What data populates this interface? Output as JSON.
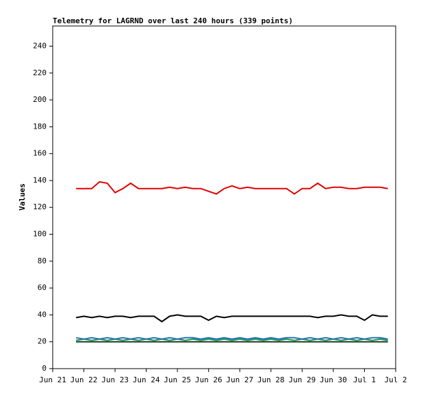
{
  "chart_data": {
    "type": "line",
    "title": "Telemetry for LAGRND over last 240 hours (339 points)",
    "y_label": "Values",
    "xlim": [
      0,
      11
    ],
    "xticks": [
      {
        "value": 0,
        "label": "Jun 21"
      },
      {
        "value": 1,
        "label": "Jun 22"
      },
      {
        "value": 2,
        "label": "Jun 23"
      },
      {
        "value": 3,
        "label": "Jun 24"
      },
      {
        "value": 4,
        "label": "Jun 25"
      },
      {
        "value": 5,
        "label": "Jun 26"
      },
      {
        "value": 6,
        "label": "Jun 27"
      },
      {
        "value": 7,
        "label": "Jun 28"
      },
      {
        "value": 8,
        "label": "Jun 29"
      },
      {
        "value": 9,
        "label": "Jun 30"
      },
      {
        "value": 10,
        "label": "Jul 1"
      },
      {
        "value": 11,
        "label": "Jul 2"
      }
    ],
    "ylim": [
      0,
      255
    ],
    "yticks": [
      0,
      20,
      40,
      60,
      80,
      100,
      120,
      140,
      160,
      180,
      200,
      220,
      240
    ],
    "grid": false,
    "x": [
      0.75,
      1.0,
      1.25,
      1.5,
      1.75,
      2.0,
      2.25,
      2.5,
      2.75,
      3.0,
      3.25,
      3.5,
      3.75,
      4.0,
      4.25,
      4.5,
      4.75,
      5.0,
      5.25,
      5.5,
      5.75,
      6.0,
      6.25,
      6.5,
      6.75,
      7.0,
      7.25,
      7.5,
      7.75,
      8.0,
      8.25,
      8.5,
      8.75,
      9.0,
      9.25,
      9.5,
      9.75,
      10.0,
      10.25,
      10.5,
      10.75
    ],
    "series": [
      {
        "color": "#e00000",
        "values": [
          134,
          134,
          134,
          139,
          138,
          131,
          134,
          138,
          134,
          134,
          134,
          134,
          135,
          134,
          135,
          134,
          134,
          132,
          130,
          134,
          136,
          134,
          135,
          134,
          134,
          134,
          134,
          134,
          130,
          134,
          134,
          138,
          134,
          135,
          135,
          134,
          134,
          135,
          135,
          135,
          134
        ]
      },
      {
        "color": "#000000",
        "values": [
          38,
          39,
          38,
          39,
          38,
          39,
          39,
          38,
          39,
          39,
          39,
          35,
          39,
          40,
          39,
          39,
          39,
          36,
          39,
          38,
          39,
          39,
          39,
          39,
          39,
          39,
          39,
          39,
          39,
          39,
          39,
          38,
          39,
          39,
          40,
          39,
          39,
          36,
          40,
          39,
          39
        ]
      },
      {
        "color": "#2a6fc0",
        "values": [
          23,
          22,
          23,
          22,
          23,
          22,
          23,
          22,
          23,
          22,
          23,
          22,
          23,
          22,
          23,
          23,
          22,
          23,
          22,
          23,
          22,
          23,
          22,
          23,
          22,
          23,
          22,
          23,
          23,
          22,
          23,
          22,
          23,
          22,
          23,
          22,
          23,
          22,
          23,
          23,
          22
        ]
      },
      {
        "color": "#1a9a50",
        "values": [
          21,
          22,
          21,
          22,
          21,
          22,
          21,
          22,
          21,
          22,
          21,
          22,
          21,
          22,
          21,
          22,
          21,
          22,
          21,
          22,
          21,
          22,
          21,
          22,
          21,
          22,
          21,
          22,
          21,
          22,
          21,
          22,
          21,
          22,
          21,
          22,
          21,
          22,
          21,
          22,
          21
        ]
      },
      {
        "color": "#1e3a1e",
        "values": [
          20,
          20,
          20,
          20,
          20,
          20,
          20,
          20,
          20,
          20,
          20,
          20,
          20,
          20,
          20,
          20,
          20,
          20,
          20,
          20,
          20,
          20,
          20,
          20,
          20,
          20,
          20,
          20,
          20,
          20,
          20,
          20,
          20,
          20,
          20,
          20,
          20,
          20,
          20,
          20,
          20
        ]
      }
    ]
  }
}
